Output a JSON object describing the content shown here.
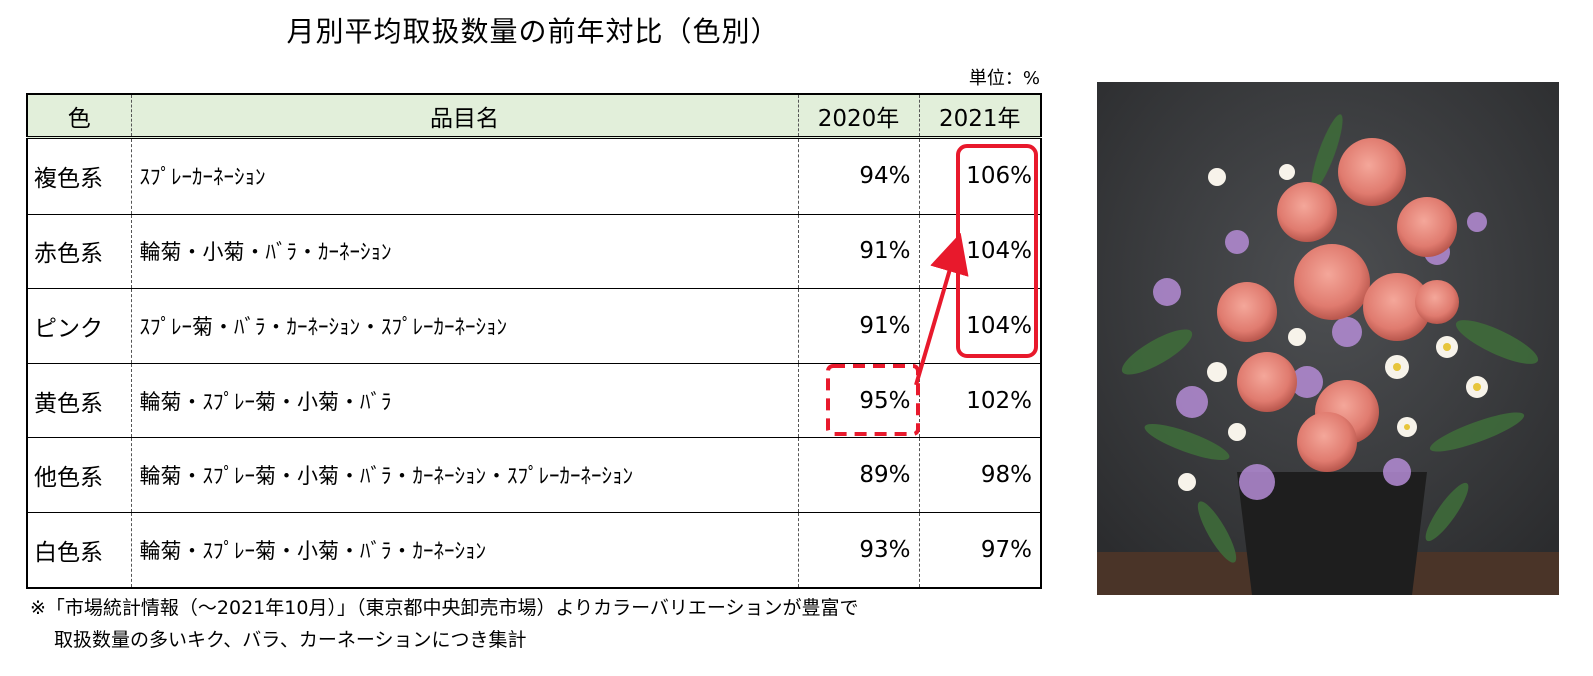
{
  "title": "月別平均取扱数量の前年対比（色別）",
  "unit": "単位：%",
  "table": {
    "headers": [
      "色",
      "品目名",
      "2020年",
      "2021年"
    ],
    "rows": [
      {
        "color": "複色系",
        "items": "ｽﾌﾟﾚｰｶｰﾈｰｼｮﾝ",
        "y2020": "94%",
        "y2021": "106%"
      },
      {
        "color": "赤色系",
        "items": "輪菊・小菊・ﾊﾞﾗ・ｶｰﾈｰｼｮﾝ",
        "y2020": "91%",
        "y2021": "104%"
      },
      {
        "color": "ピンク",
        "items": "ｽﾌﾟﾚｰ菊・ﾊﾞﾗ・ｶｰﾈｰｼｮﾝ・ｽﾌﾟﾚｰｶｰﾈｰｼｮﾝ",
        "y2020": "91%",
        "y2021": "104%"
      },
      {
        "color": "黄色系",
        "items": "輪菊・ｽﾌﾟﾚｰ菊・小菊・ﾊﾞﾗ",
        "y2020": "95%",
        "y2021": "102%"
      },
      {
        "color": "他色系",
        "items": "輪菊・ｽﾌﾟﾚｰ菊・小菊・ﾊﾞﾗ・ｶｰﾈｰｼｮﾝ・ｽﾌﾟﾚｰｶｰﾈｰｼｮﾝ",
        "y2020": "89%",
        "y2021": "98%"
      },
      {
        "color": "白色系",
        "items": "輪菊・ｽﾌﾟﾚｰ菊・小菊・ﾊﾞﾗ・ｶｰﾈｰｼｮﾝ",
        "y2020": "93%",
        "y2021": "97%"
      }
    ]
  },
  "note": {
    "line1": "※「市場統計情報（～2021年10月）」（東京都中央卸売市場）よりカラーバリエーションが豊富で",
    "line2": "取扱数量の多いキク、バラ、カーネーションにつき集計"
  },
  "colors": {
    "header_bg": "#e2efda",
    "highlight": "#e8192c"
  }
}
